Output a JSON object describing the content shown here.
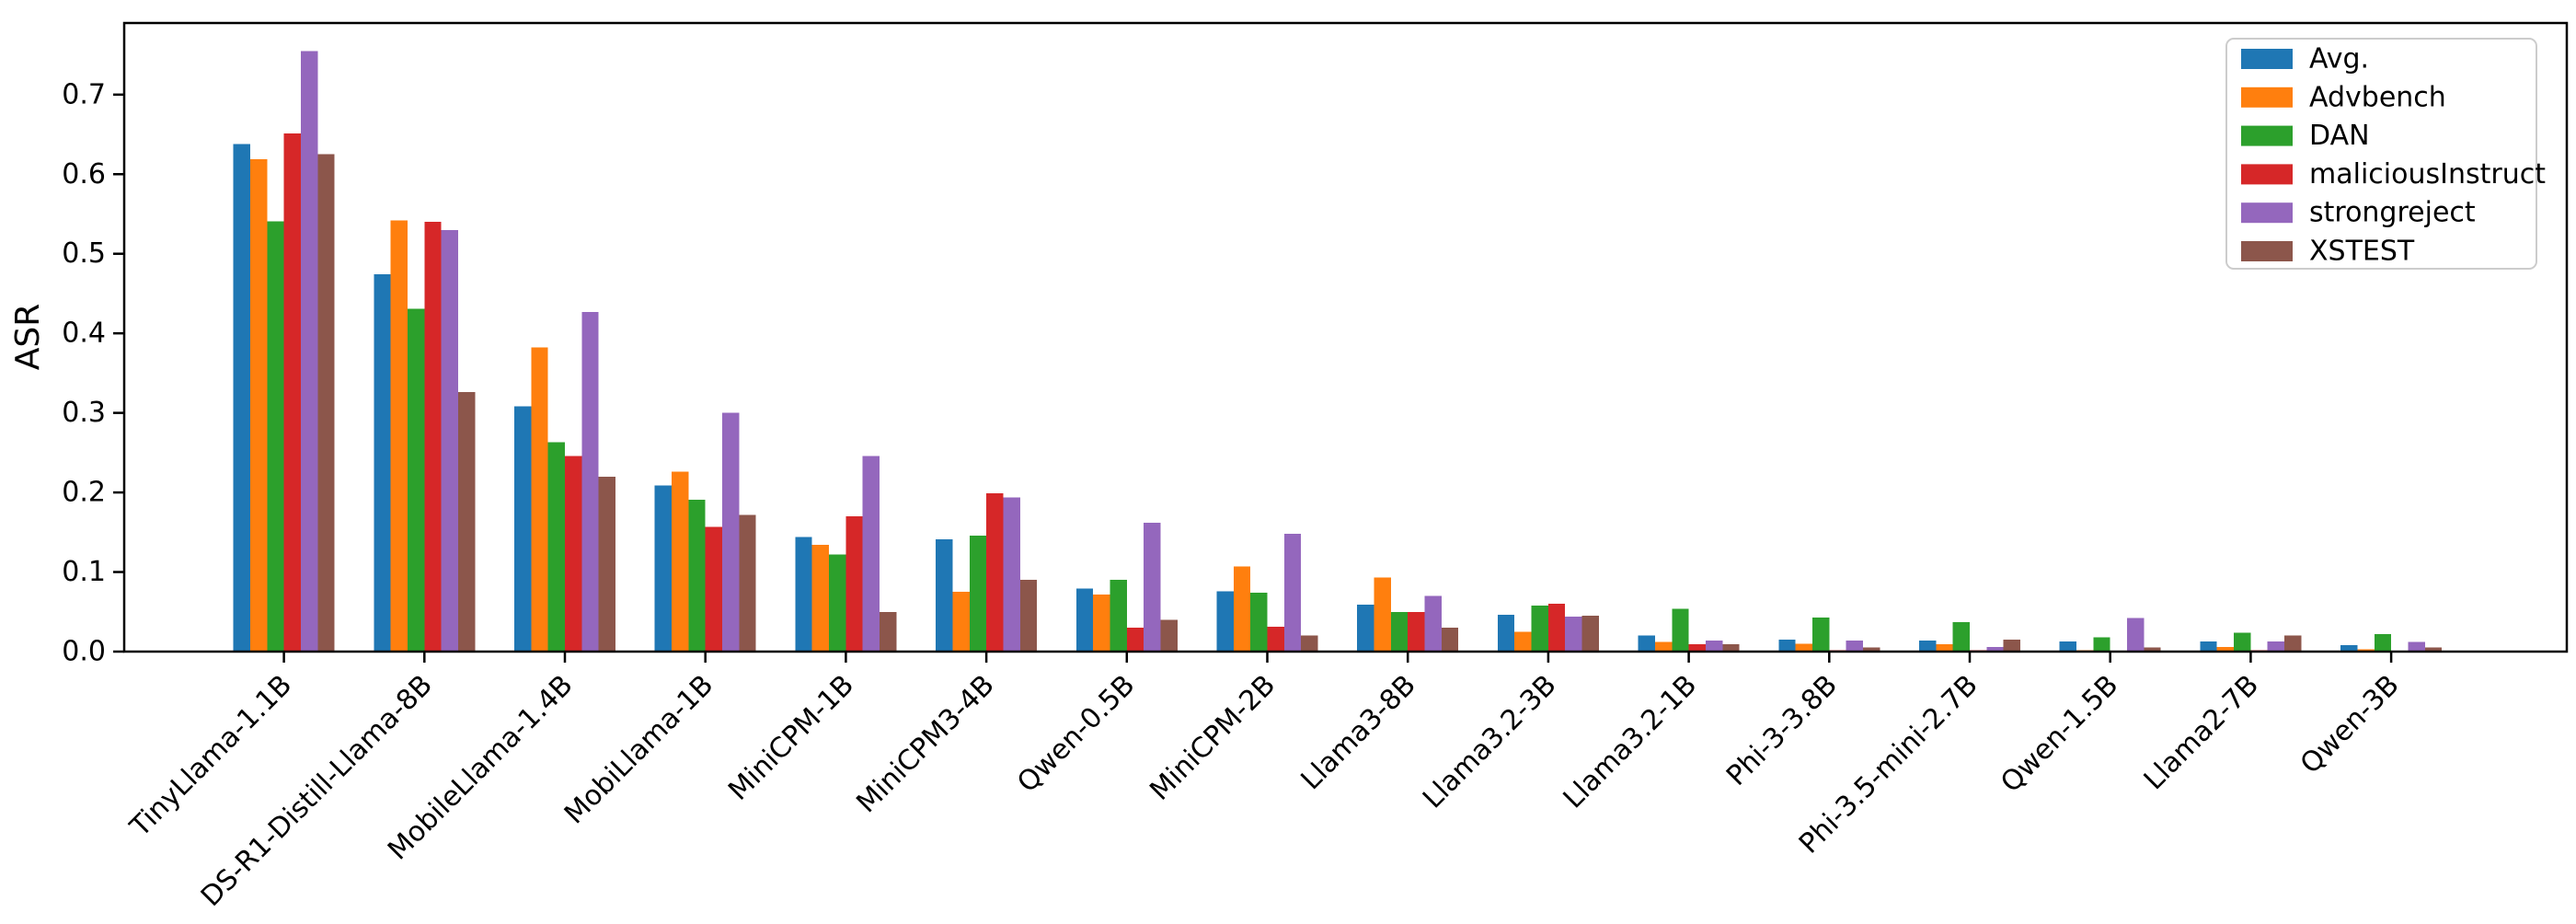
{
  "chart_data": {
    "type": "bar",
    "title": "",
    "xlabel": "",
    "ylabel": "ASR",
    "ylim": [
      0,
      0.79
    ],
    "yticks": [
      0.0,
      0.1,
      0.2,
      0.3,
      0.4,
      0.5,
      0.6,
      0.7
    ],
    "grid": false,
    "legend_position": "upper right",
    "categories": [
      "TinyLlama-1.1B",
      "DS-R1-Distill-Llama-8B",
      "MobileLlama-1.4B",
      "MobiLlama-1B",
      "MiniCPM-1B",
      "MiniCPM3-4B",
      "Qwen-0.5B",
      "MiniCPM-2B",
      "Llama3-8B",
      "Llama3.2-3B",
      "Llama3.2-1B",
      "Phi-3-3.8B",
      "Phi-3.5-mini-2.7B",
      "Qwen-1.5B",
      "Llama2-7B",
      "Qwen-3B"
    ],
    "series": [
      {
        "name": "Avg.",
        "color": "#1f77b4",
        "values": [
          0.638,
          0.474,
          0.308,
          0.209,
          0.144,
          0.141,
          0.079,
          0.076,
          0.059,
          0.046,
          0.02,
          0.015,
          0.014,
          0.013,
          0.013,
          0.008
        ]
      },
      {
        "name": "Advbench",
        "color": "#ff7f0e",
        "values": [
          0.619,
          0.542,
          0.382,
          0.226,
          0.134,
          0.075,
          0.072,
          0.107,
          0.093,
          0.025,
          0.012,
          0.01,
          0.009,
          0.002,
          0.006,
          0.003
        ]
      },
      {
        "name": "DAN",
        "color": "#2ca02c",
        "values": [
          0.541,
          0.431,
          0.263,
          0.191,
          0.122,
          0.146,
          0.09,
          0.074,
          0.05,
          0.058,
          0.054,
          0.043,
          0.037,
          0.018,
          0.024,
          0.022
        ]
      },
      {
        "name": "maliciousInstruct",
        "color": "#d62728",
        "values": [
          0.651,
          0.54,
          0.246,
          0.157,
          0.17,
          0.199,
          0.03,
          0.031,
          0.05,
          0.06,
          0.009,
          0.002,
          0.002,
          0.0,
          0.002,
          0.0
        ]
      },
      {
        "name": "strongreject",
        "color": "#9467bd",
        "values": [
          0.755,
          0.53,
          0.427,
          0.3,
          0.246,
          0.194,
          0.162,
          0.148,
          0.07,
          0.044,
          0.014,
          0.014,
          0.006,
          0.042,
          0.013,
          0.012
        ]
      },
      {
        "name": "XSTEST",
        "color": "#8c564b",
        "values": [
          0.625,
          0.326,
          0.22,
          0.172,
          0.05,
          0.09,
          0.04,
          0.02,
          0.03,
          0.045,
          0.009,
          0.005,
          0.015,
          0.005,
          0.02,
          0.005
        ]
      }
    ]
  }
}
